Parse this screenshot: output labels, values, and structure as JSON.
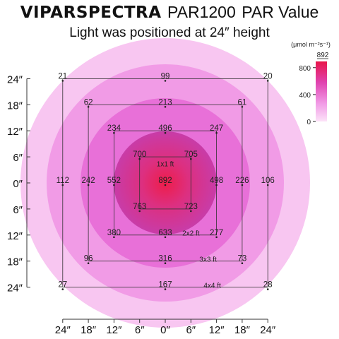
{
  "header": {
    "brand": "VIPARSPECTRA",
    "model": "PAR1200",
    "value_label": "PAR Value",
    "subtitle": "Light was positioned at 24″ height"
  },
  "colors": {
    "ring_outer": "#f8c6f1",
    "ring_4": "#f19be6",
    "ring_3": "#e870d8",
    "ring_2": "#d44aba",
    "ring_center": "#ee1d4a",
    "grid_line": "#333333"
  },
  "chart_data": {
    "type": "heatmap",
    "title": "VIPARSPECTRA PAR1200 PAR Value",
    "subtitle": "Light was positioned at 24″ height",
    "x_ticks": [
      "24″",
      "18″",
      "12″",
      "6″",
      "0″",
      "6″",
      "12″",
      "18″",
      "24″"
    ],
    "y_ticks": [
      "24″",
      "18″",
      "12″",
      "6″",
      "0″",
      "6″",
      "12″",
      "18″",
      "24″"
    ],
    "unit_label": "(μmol m⁻²s⁻¹)",
    "colorbar": {
      "min": 0,
      "max": 892,
      "ticks": [
        "800",
        "400",
        "0"
      ],
      "max_label": "892"
    },
    "footprints": [
      {
        "name": "1x1 ft",
        "half_size_in": 6
      },
      {
        "name": "2x2 ft",
        "half_size_in": 12
      },
      {
        "name": "3x3 ft",
        "half_size_in": 18
      },
      {
        "name": "4x4 ft",
        "half_size_in": 24
      }
    ],
    "points": [
      {
        "x": -24,
        "y": 24,
        "value": 21
      },
      {
        "x": 0,
        "y": 24,
        "value": 99
      },
      {
        "x": 24,
        "y": 24,
        "value": 20
      },
      {
        "x": -18,
        "y": 18,
        "value": 62
      },
      {
        "x": 0,
        "y": 18,
        "value": 213
      },
      {
        "x": 18,
        "y": 18,
        "value": 61
      },
      {
        "x": -12,
        "y": 12,
        "value": 234
      },
      {
        "x": 0,
        "y": 12,
        "value": 496
      },
      {
        "x": 12,
        "y": 12,
        "value": 247
      },
      {
        "x": -6,
        "y": 6,
        "value": 700
      },
      {
        "x": 6,
        "y": 6,
        "value": 705
      },
      {
        "x": -24,
        "y": 0,
        "value": 112
      },
      {
        "x": -18,
        "y": 0,
        "value": 242
      },
      {
        "x": -12,
        "y": 0,
        "value": 552
      },
      {
        "x": 0,
        "y": 0,
        "value": 892
      },
      {
        "x": 12,
        "y": 0,
        "value": 498
      },
      {
        "x": 18,
        "y": 0,
        "value": 226
      },
      {
        "x": 24,
        "y": 0,
        "value": 106
      },
      {
        "x": -6,
        "y": -6,
        "value": 763
      },
      {
        "x": 6,
        "y": -6,
        "value": 723
      },
      {
        "x": -12,
        "y": -12,
        "value": 380
      },
      {
        "x": 0,
        "y": -12,
        "value": 633
      },
      {
        "x": 12,
        "y": -12,
        "value": 277
      },
      {
        "x": -18,
        "y": -18,
        "value": 96
      },
      {
        "x": 0,
        "y": -18,
        "value": 316
      },
      {
        "x": 18,
        "y": -18,
        "value": 73
      },
      {
        "x": -24,
        "y": -24,
        "value": 27
      },
      {
        "x": 0,
        "y": -24,
        "value": 167
      },
      {
        "x": 24,
        "y": -24,
        "value": 28
      }
    ]
  }
}
